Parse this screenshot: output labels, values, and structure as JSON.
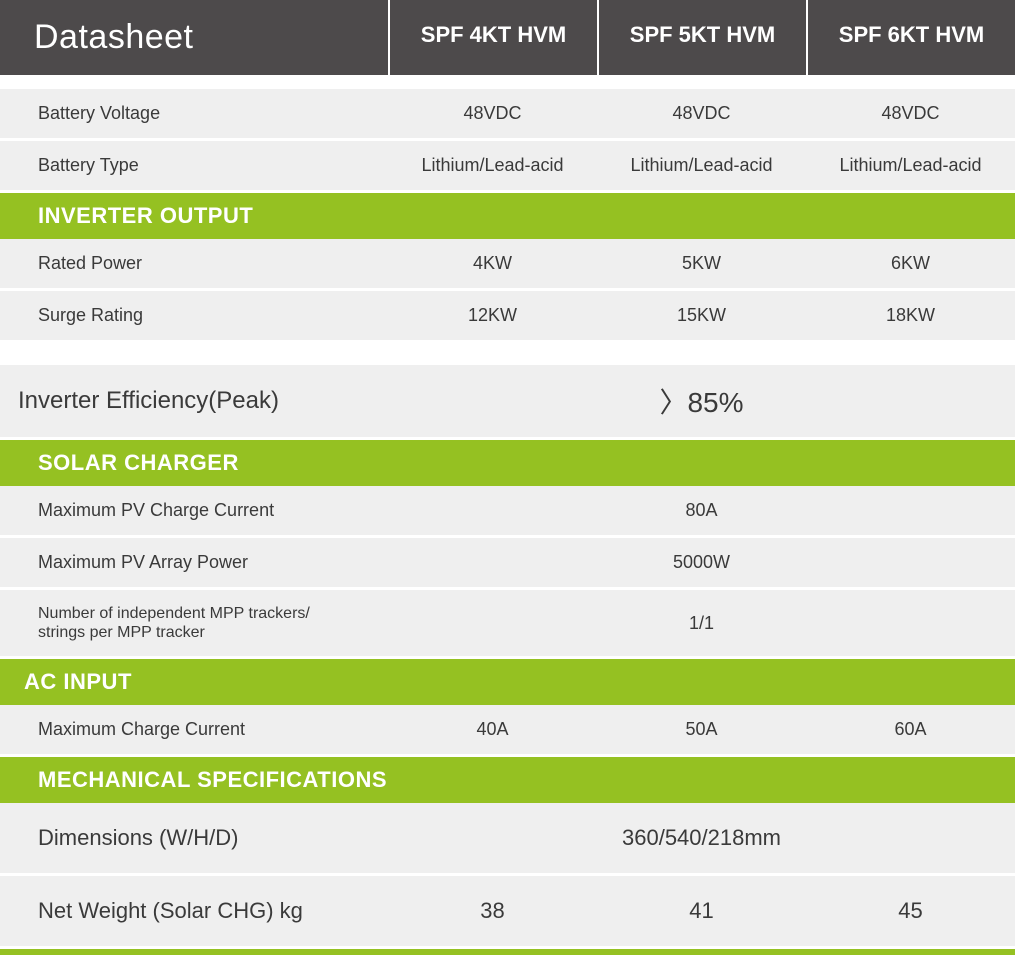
{
  "header": {
    "title": "Datasheet",
    "models": [
      "SPF 4KT HVM",
      "SPF 5KT HVM",
      "SPF 6KT HVM"
    ]
  },
  "colors": {
    "header_bg": "#4d4a4b",
    "section_bg": "#95c122",
    "row_bg": "#efefef",
    "text_dark": "#3a3a3a",
    "text_light": "#ffffff"
  },
  "battery": {
    "voltage_label": "Battery Voltage",
    "voltage": [
      "48VDC",
      "48VDC",
      "48VDC"
    ],
    "type_label": "Battery Type",
    "type": [
      "Lithium/Lead-acid",
      "Lithium/Lead-acid",
      "Lithium/Lead-acid"
    ]
  },
  "inverter": {
    "section": "INVERTER OUTPUT",
    "rated_label": "Rated Power",
    "rated": [
      "4KW",
      "5KW",
      "6KW"
    ],
    "surge_label": "Surge Rating",
    "surge": [
      "12KW",
      "15KW",
      "18KW"
    ],
    "eff_label": "Inverter Efficiency(Peak)",
    "eff_value": "〉85%"
  },
  "solar": {
    "section": "SOLAR CHARGER",
    "maxpv_label": "Maximum PV Charge Current",
    "maxpv": "80A",
    "arr_label": "Maximum PV Array Power",
    "arr": "5000W",
    "mpp_label": "Number of independent MPP trackers/\nstrings per MPP tracker",
    "mpp": "1/1"
  },
  "ac": {
    "section": "AC INPUT",
    "max_label": "Maximum Charge Current",
    "max": [
      "40A",
      "50A",
      "60A"
    ]
  },
  "mech": {
    "section": "MECHANICAL SPECIFICATIONS",
    "dim_label": "Dimensions (W/H/D)",
    "dim": "360/540/218mm",
    "wt_label": "Net Weight (Solar CHG) kg",
    "wt": [
      "38",
      "41",
      "45"
    ]
  }
}
